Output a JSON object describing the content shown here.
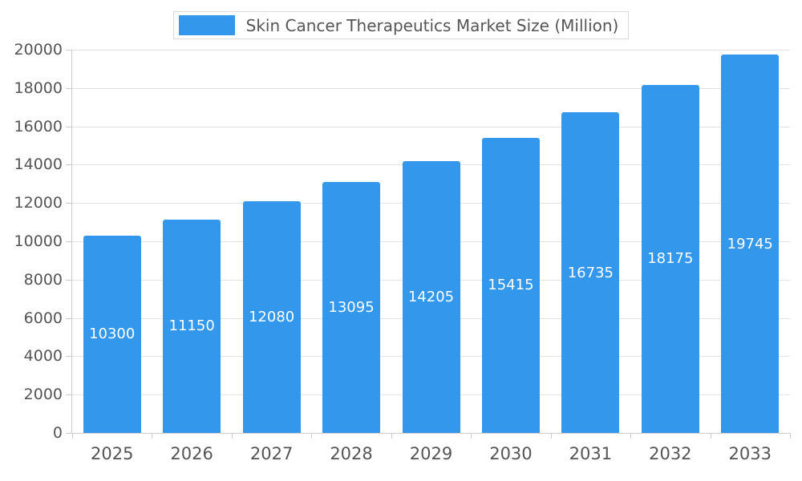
{
  "chart_data": {
    "type": "bar",
    "title": "Skin Cancer Therapeutics Market Size (Million)",
    "categories": [
      "2025",
      "2026",
      "2027",
      "2028",
      "2029",
      "2030",
      "2031",
      "2032",
      "2033"
    ],
    "values": [
      10300,
      11150,
      12080,
      13095,
      14205,
      15415,
      16735,
      18175,
      19745
    ],
    "ylim": [
      0,
      20000
    ],
    "ytick_interval": 2000,
    "ytick_labels": [
      "0",
      "2000",
      "4000",
      "6000",
      "8000",
      "10000",
      "12000",
      "14000",
      "16000",
      "18000",
      "20000"
    ],
    "bar_color": "#3398EC",
    "value_label_color": "#ffffff",
    "axis_text_color": "#555555",
    "grid_color": "#e3e3e3",
    "axis_line_color": "#cccccc",
    "grid": true,
    "legend_position": "top"
  }
}
